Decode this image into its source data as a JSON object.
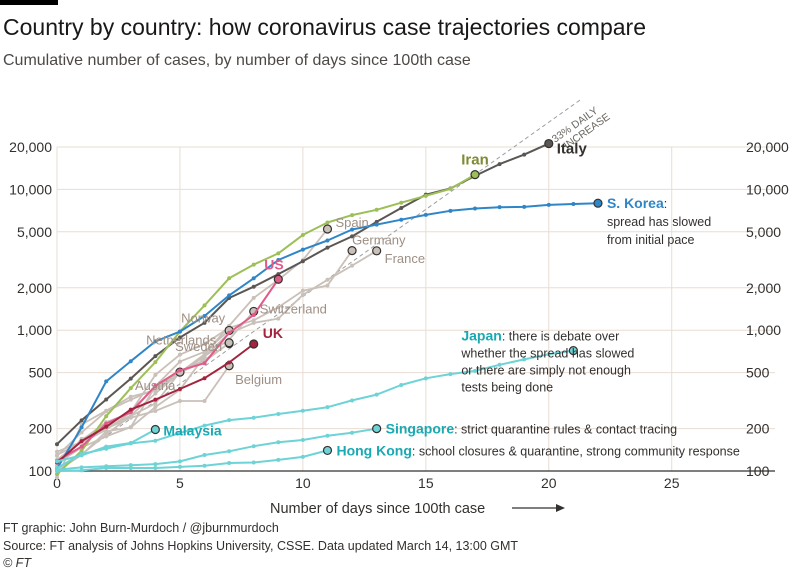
{
  "title": "Country by country: how coronavirus case trajectories compare",
  "subtitle": "Cumulative number of cases, by number of days since 100th case",
  "footer": {
    "credit": "FT graphic: John Burn-Murdoch / @jburnmurdoch",
    "source": "Source: FT analysis of Johns Hopkins University, CSSE. Data updated March 14, 13:00 GMT",
    "copyright": "© FT"
  },
  "colors": {
    "grid": "#e8ddd2",
    "axis": "#33302e",
    "gray_series": "#c9c0b9",
    "reference_line": "#9e9e9e"
  },
  "chart_data": {
    "type": "line",
    "title": "Country by country: how coronavirus case trajectories compare",
    "xlabel": "Number of days since 100th case",
    "ylabel": "",
    "x_ticks": [
      0,
      5,
      10,
      15,
      20,
      25
    ],
    "y_ticks": [
      100,
      200,
      500,
      1000,
      2000,
      5000,
      10000,
      20000
    ],
    "y_tick_labels": [
      "100",
      "200",
      "500",
      "1,000",
      "2,000",
      "5,000",
      "10,000",
      "20,000"
    ],
    "xlim": [
      0,
      29.2
    ],
    "ylim": [
      100,
      20000
    ],
    "y_scale": "log",
    "grid": true,
    "reference_line": {
      "label": "33% DAILY INCREASE",
      "label_lines": [
        "33% DAILY",
        "INCREASE"
      ],
      "start": [
        0,
        100
      ],
      "daily_growth": 1.33,
      "end_x": 21.3
    },
    "series": [
      {
        "name": "Italy",
        "color": "#5a5654",
        "label_color": "#33302e",
        "emphasis": true,
        "x": [
          0,
          1,
          2,
          3,
          4,
          5,
          6,
          7,
          8,
          9,
          10,
          11,
          12,
          13,
          14,
          15,
          16,
          17,
          18,
          19,
          20
        ],
        "y": [
          155,
          229,
          322,
          453,
          655,
          888,
          1128,
          1694,
          2036,
          2502,
          3089,
          3858,
          4636,
          5883,
          7375,
          9172,
          10149,
          12462,
          15113,
          17660,
          21157
        ]
      },
      {
        "name": "Iran",
        "color": "#9dbf57",
        "label_color": "#7e8a37",
        "emphasis": true,
        "x": [
          0,
          1,
          2,
          3,
          4,
          5,
          6,
          7,
          8,
          9,
          10,
          11,
          12,
          13,
          14,
          15,
          16,
          17
        ],
        "y": [
          95,
          139,
          245,
          388,
          593,
          978,
          1501,
          2336,
          2922,
          3513,
          4747,
          5823,
          6566,
          7161,
          8042,
          9000,
          10075,
          12729
        ]
      },
      {
        "name": "S. Korea",
        "color": "#2e86c9",
        "label_color": "#2e86c9",
        "emphasis": true,
        "x": [
          0,
          1,
          2,
          3,
          4,
          5,
          6,
          7,
          8,
          9,
          10,
          11,
          12,
          13,
          14,
          15,
          16,
          17,
          18,
          19,
          20,
          21,
          22
        ],
        "y": [
          104,
          204,
          433,
          602,
          833,
          977,
          1261,
          1766,
          2337,
          3150,
          3736,
          4335,
          5186,
          5621,
          6088,
          6593,
          7041,
          7314,
          7478,
          7513,
          7755,
          7869,
          7979
        ]
      },
      {
        "name": "Spain",
        "color": "#c9c0b9",
        "label_color": "#9e8f84",
        "emphasis": false,
        "x": [
          0,
          1,
          2,
          3,
          4,
          5,
          6,
          7,
          8,
          9,
          10,
          11
        ],
        "y": [
          120,
          165,
          222,
          259,
          400,
          500,
          673,
          1073,
          1695,
          2277,
          3146,
          5232
        ]
      },
      {
        "name": "Germany",
        "color": "#c9c0b9",
        "label_color": "#9e8f84",
        "emphasis": false,
        "x": [
          0,
          1,
          2,
          3,
          4,
          5,
          6,
          7,
          8,
          9,
          10,
          11,
          12
        ],
        "y": [
          130,
          159,
          196,
          262,
          482,
          670,
          799,
          1040,
          1176,
          1457,
          1908,
          2078,
          3675
        ]
      },
      {
        "name": "France",
        "color": "#c9c0b9",
        "label_color": "#9e8f84",
        "emphasis": false,
        "x": [
          0,
          1,
          2,
          3,
          4,
          5,
          6,
          7,
          8,
          9,
          10,
          11,
          12,
          13
        ],
        "y": [
          100,
          130,
          191,
          204,
          285,
          377,
          653,
          949,
          1126,
          1209,
          1784,
          2281,
          2876,
          3661
        ]
      },
      {
        "name": "Switzerland",
        "color": "#c9c0b9",
        "label_color": "#9e8f84",
        "emphasis": false,
        "x": [
          0,
          1,
          2,
          3,
          4,
          5,
          6,
          7,
          8
        ],
        "y": [
          90,
          214,
          268,
          337,
          374,
          491,
          652,
          858,
          1359
        ]
      },
      {
        "name": "Norway",
        "color": "#c9c0b9",
        "label_color": "#9e8f84",
        "emphasis": false,
        "x": [
          0,
          1,
          2,
          3,
          4,
          5,
          6,
          7
        ],
        "y": [
          113,
          147,
          176,
          205,
          400,
          598,
          702,
          996
        ]
      },
      {
        "name": "Netherlands",
        "color": "#c9c0b9",
        "label_color": "#9e8f84",
        "emphasis": false,
        "x": [
          0,
          1,
          2,
          3,
          4,
          5,
          6,
          7
        ],
        "y": [
          128,
          188,
          265,
          321,
          382,
          503,
          614,
          804
        ]
      },
      {
        "name": "Sweden",
        "color": "#c9c0b9",
        "label_color": "#9e8f84",
        "emphasis": false,
        "x": [
          0,
          1,
          2,
          3,
          4,
          5,
          6,
          7
        ],
        "y": [
          137,
          161,
          203,
          248,
          355,
          500,
          599,
          814
        ]
      },
      {
        "name": "Austria",
        "color": "#c9c0b9",
        "label_color": "#9e8f84",
        "emphasis": false,
        "x": [
          0,
          1,
          2,
          3,
          4,
          5
        ],
        "y": [
          104,
          131,
          182,
          246,
          302,
          504
        ]
      },
      {
        "name": "Belgium",
        "color": "#c9c0b9",
        "label_color": "#9e8f84",
        "emphasis": false,
        "x": [
          0,
          1,
          2,
          3,
          4,
          5,
          6,
          7
        ],
        "y": [
          109,
          169,
          200,
          239,
          267,
          314,
          314,
          559
        ]
      },
      {
        "name": "US",
        "color": "#e05a8a",
        "label_color": "#e05a8a",
        "emphasis": true,
        "x": [
          0,
          1,
          2,
          3,
          4,
          5,
          6,
          7,
          8,
          9
        ],
        "y": [
          118,
          149,
          217,
          262,
          402,
          518,
          583,
          959,
          1281,
          2300
        ]
      },
      {
        "name": "UK",
        "color": "#a3243f",
        "label_color": "#a3243f",
        "emphasis": true,
        "x": [
          0,
          1,
          2,
          3,
          4,
          5,
          6,
          7,
          8
        ],
        "y": [
          115,
          163,
          206,
          273,
          321,
          382,
          456,
          590,
          798
        ]
      },
      {
        "name": "Japan",
        "color": "#6dd3d6",
        "label_color": "#18a9b3",
        "emphasis": true,
        "x": [
          0,
          1,
          2,
          3,
          4,
          5,
          6,
          7,
          8,
          9,
          10,
          11,
          12,
          13,
          14,
          15,
          16,
          17,
          18,
          19,
          20,
          21
        ],
        "y": [
          105,
          132,
          144,
          157,
          164,
          186,
          210,
          230,
          239,
          254,
          268,
          284,
          317,
          349,
          408,
          455,
          488,
          514,
          568,
          620,
          675,
          716
        ]
      },
      {
        "name": "Malaysia",
        "color": "#6dd3d6",
        "label_color": "#18a9b3",
        "emphasis": true,
        "x": [
          0,
          1,
          2,
          3,
          4
        ],
        "y": [
          117,
          129,
          149,
          158,
          197
        ]
      },
      {
        "name": "Singapore",
        "color": "#6dd3d6",
        "label_color": "#18a9b3",
        "emphasis": true,
        "x": [
          0,
          1,
          2,
          3,
          4,
          5,
          6,
          7,
          8,
          9,
          10,
          11,
          12,
          13
        ],
        "y": [
          102,
          106,
          108,
          110,
          112,
          117,
          130,
          138,
          150,
          160,
          166,
          178,
          187,
          200
        ]
      },
      {
        "name": "Hong Kong",
        "color": "#6dd3d6",
        "label_color": "#18a9b3",
        "emphasis": true,
        "x": [
          0,
          1,
          2,
          3,
          4,
          5,
          6,
          7,
          8,
          9,
          10,
          11
        ],
        "y": [
          100,
          101,
          105,
          105,
          105,
          107,
          109,
          114,
          115,
          120,
          126,
          140
        ]
      }
    ],
    "annotations": [
      {
        "series": "S. Korea",
        "text": ": spread has slowed from initial pace",
        "lines": [
          ":",
          "spread has slowed",
          "from initial pace"
        ]
      },
      {
        "series": "Japan",
        "text": ": there is debate over whether the spread has slowed or there are simply not enough tests being done",
        "lines": [
          ": there is debate over",
          "whether the spread has slowed",
          "or there are simply not enough",
          "tests being done"
        ]
      },
      {
        "series": "Singapore",
        "text": ": strict quarantine rules & contact tracing"
      },
      {
        "series": "Hong Kong",
        "text": ": school closures & quarantine, strong community response"
      }
    ]
  }
}
